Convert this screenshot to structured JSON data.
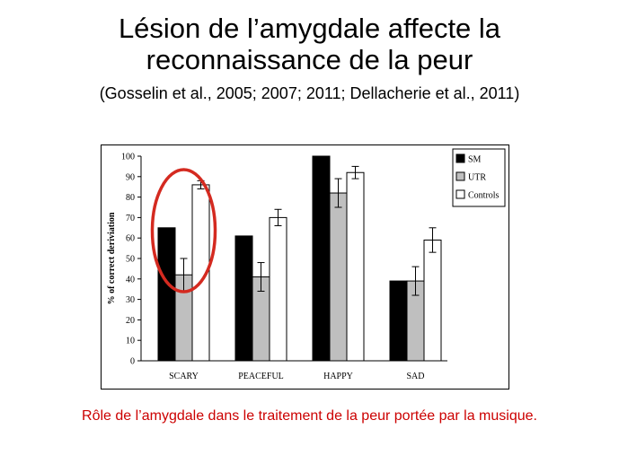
{
  "slide": {
    "title_line1": "Lésion de l’amygdale affecte la",
    "title_line2": "reconnaissance de la peur",
    "subtitle": "(Gosselin et al., 2005; 2007; 2011; Dellacherie et al., 2011)",
    "caption": "Rôle de l’amygdale dans le traitement de la peur portée par la musique."
  },
  "colors": {
    "caption": "#cc0000",
    "highlight_circle": "#d42a20"
  },
  "chart_data": {
    "type": "bar",
    "categories": [
      "SCARY",
      "PEACEFUL",
      "HAPPY",
      "SAD"
    ],
    "ylabel": "% of correct deriviation",
    "ylim": [
      0,
      100
    ],
    "yticks": [
      0,
      10,
      20,
      30,
      40,
      50,
      60,
      70,
      80,
      90,
      100
    ],
    "legend_position": "top-right",
    "highlight": "SCARY",
    "series": [
      {
        "name": "SM",
        "color": "#000000",
        "values": [
          65,
          61,
          100,
          39
        ],
        "errors": [
          0,
          0,
          0,
          0
        ]
      },
      {
        "name": "UTR",
        "color": "#bfbfbf",
        "values": [
          42,
          41,
          82,
          39
        ],
        "errors": [
          8,
          7,
          7,
          7
        ]
      },
      {
        "name": "Controls",
        "color": "#ffffff",
        "values": [
          86,
          70,
          92,
          59
        ],
        "errors": [
          2,
          4,
          3,
          6
        ]
      }
    ]
  }
}
